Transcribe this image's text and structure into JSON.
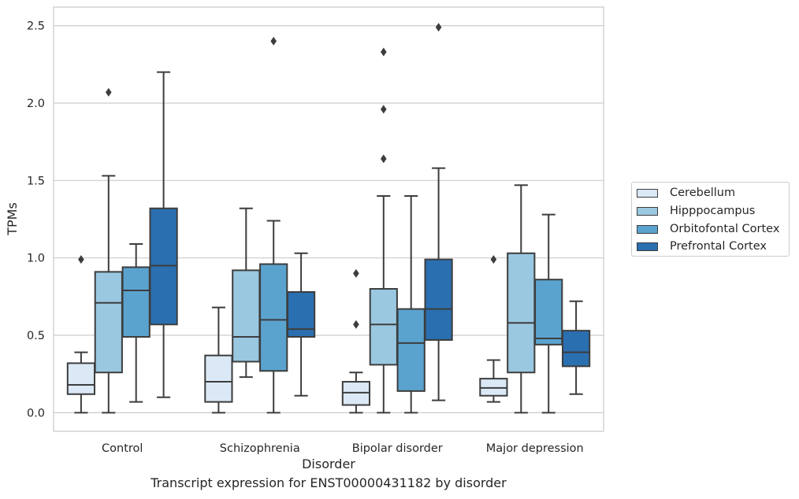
{
  "caption": "Transcript expression for ENST00000431182 by disorder",
  "chart_data": {
    "type": "box",
    "xlabel": "Disorder",
    "ylabel": "TPMs",
    "ylim": [
      -0.12,
      2.62
    ],
    "yticks": [
      "0.0",
      "0.5",
      "1.0",
      "1.5",
      "2.0",
      "2.5"
    ],
    "ytick_values": [
      0,
      0.5,
      1.0,
      1.5,
      2.0,
      2.5
    ],
    "grid": "horizontal",
    "legend_position": "right",
    "categories": [
      "Control",
      "Schizophrenia",
      "Bipolar disorder",
      "Major depression"
    ],
    "series": [
      {
        "name": "Cerebellum",
        "color": "#dbe9f6",
        "boxes": [
          {
            "whisker_low": 0.0,
            "q1": 0.12,
            "median": 0.18,
            "q3": 0.32,
            "whisker_high": 0.39,
            "outliers": [
              0.99
            ]
          },
          {
            "whisker_low": 0.0,
            "q1": 0.07,
            "median": 0.2,
            "q3": 0.37,
            "whisker_high": 0.68,
            "outliers": []
          },
          {
            "whisker_low": 0.0,
            "q1": 0.05,
            "median": 0.13,
            "q3": 0.2,
            "whisker_high": 0.26,
            "outliers": [
              0.57,
              0.9
            ]
          },
          {
            "whisker_low": 0.07,
            "q1": 0.11,
            "median": 0.16,
            "q3": 0.22,
            "whisker_high": 0.34,
            "outliers": [
              0.99
            ]
          }
        ]
      },
      {
        "name": "Hipppocampus",
        "color": "#9ac8e0",
        "boxes": [
          {
            "whisker_low": 0.0,
            "q1": 0.26,
            "median": 0.71,
            "q3": 0.91,
            "whisker_high": 1.53,
            "outliers": [
              2.07
            ]
          },
          {
            "whisker_low": 0.23,
            "q1": 0.33,
            "median": 0.49,
            "q3": 0.92,
            "whisker_high": 1.32,
            "outliers": []
          },
          {
            "whisker_low": 0.0,
            "q1": 0.31,
            "median": 0.57,
            "q3": 0.8,
            "whisker_high": 1.4,
            "outliers": [
              1.64,
              1.96,
              2.33
            ]
          },
          {
            "whisker_low": 0.0,
            "q1": 0.26,
            "median": 0.58,
            "q3": 1.03,
            "whisker_high": 1.47,
            "outliers": []
          }
        ]
      },
      {
        "name": "Orbitofontal Cortex",
        "color": "#5ba3cf",
        "boxes": [
          {
            "whisker_low": 0.07,
            "q1": 0.49,
            "median": 0.79,
            "q3": 0.94,
            "whisker_high": 1.09,
            "outliers": []
          },
          {
            "whisker_low": 0.0,
            "q1": 0.27,
            "median": 0.6,
            "q3": 0.96,
            "whisker_high": 1.24,
            "outliers": [
              2.4
            ]
          },
          {
            "whisker_low": 0.0,
            "q1": 0.14,
            "median": 0.45,
            "q3": 0.67,
            "whisker_high": 1.4,
            "outliers": []
          },
          {
            "whisker_low": 0.0,
            "q1": 0.44,
            "median": 0.48,
            "q3": 0.86,
            "whisker_high": 1.28,
            "outliers": []
          }
        ]
      },
      {
        "name": "Prefrontal Cortex",
        "color": "#2a6fb0",
        "boxes": [
          {
            "whisker_low": 0.1,
            "q1": 0.57,
            "median": 0.95,
            "q3": 1.32,
            "whisker_high": 2.2,
            "outliers": []
          },
          {
            "whisker_low": 0.11,
            "q1": 0.49,
            "median": 0.54,
            "q3": 0.78,
            "whisker_high": 1.03,
            "outliers": []
          },
          {
            "whisker_low": 0.08,
            "q1": 0.47,
            "median": 0.67,
            "q3": 0.99,
            "whisker_high": 1.58,
            "outliers": [
              2.49
            ]
          },
          {
            "whisker_low": 0.12,
            "q1": 0.3,
            "median": 0.39,
            "q3": 0.53,
            "whisker_high": 0.72,
            "outliers": []
          }
        ]
      }
    ]
  }
}
